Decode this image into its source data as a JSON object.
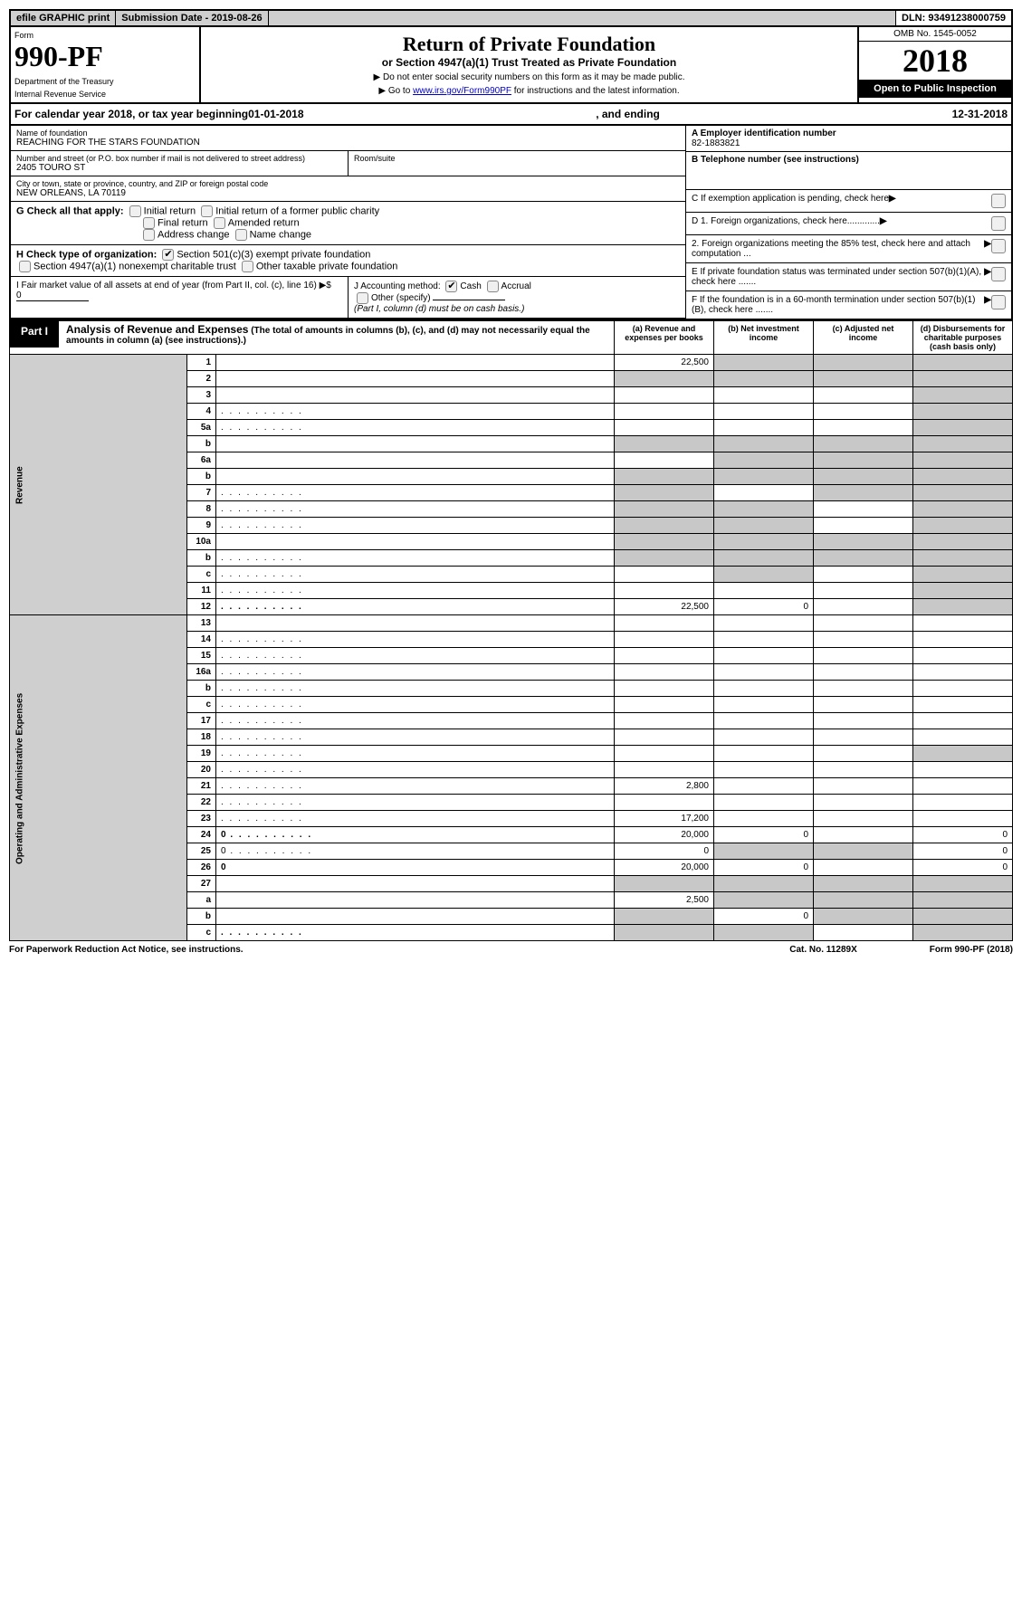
{
  "topbar": {
    "efile": "efile GRAPHIC print",
    "subdate_label": "Submission Date - 2019-08-26",
    "dln": "DLN: 93491238000759"
  },
  "header": {
    "form_word": "Form",
    "form_no": "990-PF",
    "dept1": "Department of the Treasury",
    "dept2": "Internal Revenue Service",
    "title": "Return of Private Foundation",
    "subtitle": "or Section 4947(a)(1) Trust Treated as Private Foundation",
    "note1": "▶ Do not enter social security numbers on this form as it may be made public.",
    "note2_pre": "▶ Go to ",
    "note2_link": "www.irs.gov/Form990PF",
    "note2_post": " for instructions and the latest information.",
    "omb": "OMB No. 1545-0052",
    "year": "2018",
    "open": "Open to Public Inspection"
  },
  "calyear": {
    "pre": "For calendar year 2018, or tax year beginning ",
    "begin": "01-01-2018",
    "mid": " , and ending ",
    "end": "12-31-2018"
  },
  "entity": {
    "name_label": "Name of foundation",
    "name": "REACHING FOR THE STARS FOUNDATION",
    "addr_label": "Number and street (or P.O. box number if mail is not delivered to street address)",
    "addr": "2405 TOURO ST",
    "room_label": "Room/suite",
    "city_label": "City or town, state or province, country, and ZIP or foreign postal code",
    "city": "NEW ORLEANS, LA  70119"
  },
  "right": {
    "a_label": "A Employer identification number",
    "a_val": "82-1883821",
    "b_label": "B Telephone number (see instructions)",
    "c_label": "C If exemption application is pending, check here",
    "d1": "D 1. Foreign organizations, check here.............",
    "d2": "2. Foreign organizations meeting the 85% test, check here and attach computation ...",
    "e": "E  If private foundation status was terminated under section 507(b)(1)(A), check here .......",
    "f": "F  If the foundation is in a 60-month termination under section 507(b)(1)(B), check here ......."
  },
  "g": {
    "label": "G Check all that apply:",
    "opts": [
      "Initial return",
      "Initial return of a former public charity",
      "Final return",
      "Amended return",
      "Address change",
      "Name change"
    ]
  },
  "h": {
    "label": "H Check type of organization:",
    "opt1": "Section 501(c)(3) exempt private foundation",
    "opt2": "Section 4947(a)(1) nonexempt charitable trust",
    "opt3": "Other taxable private foundation"
  },
  "i": {
    "label": "I Fair market value of all assets at end of year (from Part II, col. (c), line 16) ▶$",
    "val": "0"
  },
  "j": {
    "label": "J Accounting method:",
    "cash": "Cash",
    "accrual": "Accrual",
    "other": "Other (specify)",
    "note": "(Part I, column (d) must be on cash basis.)"
  },
  "part1": {
    "label": "Part I",
    "title": "Analysis of Revenue and Expenses",
    "title_note": "(The total of amounts in columns (b), (c), and (d) may not necessarily equal the amounts in column (a) (see instructions).)",
    "col_a": "(a)   Revenue and expenses per books",
    "col_b": "(b)  Net investment income",
    "col_c": "(c)  Adjusted net income",
    "col_d": "(d)  Disbursements for charitable purposes (cash basis only)"
  },
  "side_rev": "Revenue",
  "side_exp": "Operating and Administrative Expenses",
  "rows": [
    {
      "n": "1",
      "d": "",
      "a": "22,500",
      "b": "",
      "c": "",
      "sb": true,
      "sc": true,
      "sd": true
    },
    {
      "n": "2",
      "d": "",
      "a": "",
      "b": "",
      "c": "",
      "sa": true,
      "sb": true,
      "sc": true,
      "sd": true,
      "bold_not": true
    },
    {
      "n": "3",
      "d": "",
      "a": "",
      "b": "",
      "c": "",
      "sd": true
    },
    {
      "n": "4",
      "d": "",
      "a": "",
      "b": "",
      "c": "",
      "sd": true,
      "dots": true
    },
    {
      "n": "5a",
      "d": "",
      "a": "",
      "b": "",
      "c": "",
      "sd": true,
      "dots": true
    },
    {
      "n": "b",
      "d": "",
      "a": "",
      "b": "",
      "c": "",
      "sa": true,
      "sb": true,
      "sc": true,
      "sd": true
    },
    {
      "n": "6a",
      "d": "",
      "a": "",
      "b": "",
      "c": "",
      "sb": true,
      "sc": true,
      "sd": true
    },
    {
      "n": "b",
      "d": "",
      "a": "",
      "b": "",
      "c": "",
      "sa": true,
      "sb": true,
      "sc": true,
      "sd": true
    },
    {
      "n": "7",
      "d": "",
      "a": "",
      "b": "",
      "c": "",
      "sa": true,
      "sc": true,
      "sd": true,
      "dots": true
    },
    {
      "n": "8",
      "d": "",
      "a": "",
      "b": "",
      "c": "",
      "sa": true,
      "sb": true,
      "sd": true,
      "dots": true
    },
    {
      "n": "9",
      "d": "",
      "a": "",
      "b": "",
      "c": "",
      "sa": true,
      "sb": true,
      "sd": true,
      "dots": true
    },
    {
      "n": "10a",
      "d": "",
      "a": "",
      "b": "",
      "c": "",
      "sa": true,
      "sb": true,
      "sc": true,
      "sd": true
    },
    {
      "n": "b",
      "d": "",
      "a": "",
      "b": "",
      "c": "",
      "sa": true,
      "sb": true,
      "sc": true,
      "sd": true,
      "dots": true
    },
    {
      "n": "c",
      "d": "",
      "a": "",
      "b": "",
      "c": "",
      "sb": true,
      "sd": true,
      "dots": true
    },
    {
      "n": "11",
      "d": "",
      "a": "",
      "b": "",
      "c": "",
      "sd": true,
      "dots": true
    },
    {
      "n": "12",
      "d": "",
      "a": "22,500",
      "b": "0",
      "c": "",
      "sd": true,
      "bold": true,
      "dots": true
    }
  ],
  "exp_rows": [
    {
      "n": "13",
      "d": "",
      "a": "",
      "b": "",
      "c": ""
    },
    {
      "n": "14",
      "d": "",
      "a": "",
      "b": "",
      "c": "",
      "dots": true
    },
    {
      "n": "15",
      "d": "",
      "a": "",
      "b": "",
      "c": "",
      "dots": true
    },
    {
      "n": "16a",
      "d": "",
      "a": "",
      "b": "",
      "c": "",
      "dots": true
    },
    {
      "n": "b",
      "d": "",
      "a": "",
      "b": "",
      "c": "",
      "dots": true
    },
    {
      "n": "c",
      "d": "",
      "a": "",
      "b": "",
      "c": "",
      "dots": true
    },
    {
      "n": "17",
      "d": "",
      "a": "",
      "b": "",
      "c": "",
      "dots": true
    },
    {
      "n": "18",
      "d": "",
      "a": "",
      "b": "",
      "c": "",
      "dots": true
    },
    {
      "n": "19",
      "d": "",
      "a": "",
      "b": "",
      "c": "",
      "sd": true,
      "dots": true
    },
    {
      "n": "20",
      "d": "",
      "a": "",
      "b": "",
      "c": "",
      "dots": true
    },
    {
      "n": "21",
      "d": "",
      "a": "2,800",
      "b": "",
      "c": "",
      "dots": true
    },
    {
      "n": "22",
      "d": "",
      "a": "",
      "b": "",
      "c": "",
      "dots": true
    },
    {
      "n": "23",
      "d": "",
      "a": "17,200",
      "b": "",
      "c": "",
      "dots": true
    },
    {
      "n": "24",
      "d": "0",
      "a": "20,000",
      "b": "0",
      "c": "",
      "bold": true,
      "dots": true
    },
    {
      "n": "25",
      "d": "0",
      "a": "0",
      "b": "",
      "c": "",
      "sb": true,
      "sc": true,
      "dots": true
    },
    {
      "n": "26",
      "d": "0",
      "a": "20,000",
      "b": "0",
      "c": "",
      "bold": true
    },
    {
      "n": "27",
      "d": "",
      "a": "",
      "b": "",
      "c": "",
      "sa": true,
      "sb": true,
      "sc": true,
      "sd": true
    },
    {
      "n": "a",
      "d": "",
      "a": "2,500",
      "b": "",
      "c": "",
      "sb": true,
      "sc": true,
      "sd": true,
      "bold": true
    },
    {
      "n": "b",
      "d": "",
      "a": "",
      "b": "0",
      "c": "",
      "sa": true,
      "sc": true,
      "sd": true,
      "bold": true
    },
    {
      "n": "c",
      "d": "",
      "a": "",
      "b": "",
      "c": "",
      "sa": true,
      "sb": true,
      "sd": true,
      "bold": true,
      "dots": true
    }
  ],
  "footer": {
    "left": "For Paperwork Reduction Act Notice, see instructions.",
    "mid": "Cat. No. 11289X",
    "right": "Form 990-PF (2018)"
  }
}
